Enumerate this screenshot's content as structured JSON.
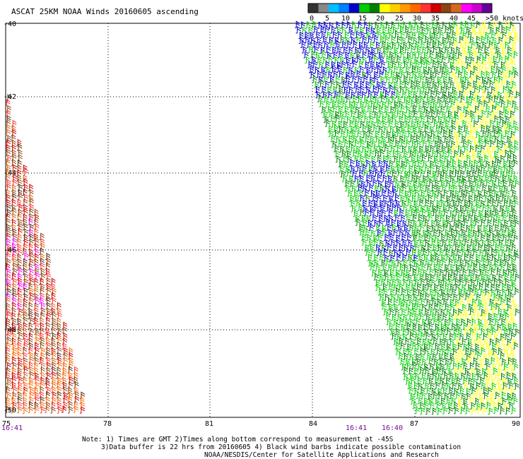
{
  "title": "ASCAT 25KM NOAA Winds 20160605 ascending",
  "legend": {
    "tick_labels": [
      "0",
      "5",
      "10",
      "15",
      "20",
      "25",
      "30",
      "35",
      "40",
      "45",
      ">50 knots"
    ],
    "colors": [
      "#333333",
      "#888888",
      "#00bfff",
      "#0080ff",
      "#0000cc",
      "#00cc00",
      "#008000",
      "#ffff00",
      "#ffcc00",
      "#ff9900",
      "#ff6600",
      "#ff3333",
      "#cc0000",
      "#8b4513",
      "#d2691e",
      "#ff00ff",
      "#cc00cc",
      "#660099"
    ]
  },
  "map": {
    "lon_labels": [
      "75",
      "78",
      "81",
      "84",
      "87",
      "90"
    ],
    "lat_labels": [
      "-40",
      "-42",
      "-44",
      "-46",
      "-48",
      "-50"
    ],
    "time_labels_bottom": [
      "16:41",
      "16:41",
      "16:40"
    ]
  },
  "notes": [
    "Note: 1) Times are GMT 2)Times along bottom correspond to measurement at -45S",
    "3)Data buffer is 22 hrs from 20160605 4) Black wind barbs indicate possible contamination",
    "NOAA/NESDIS/Center for Satellite Applications and Research"
  ]
}
